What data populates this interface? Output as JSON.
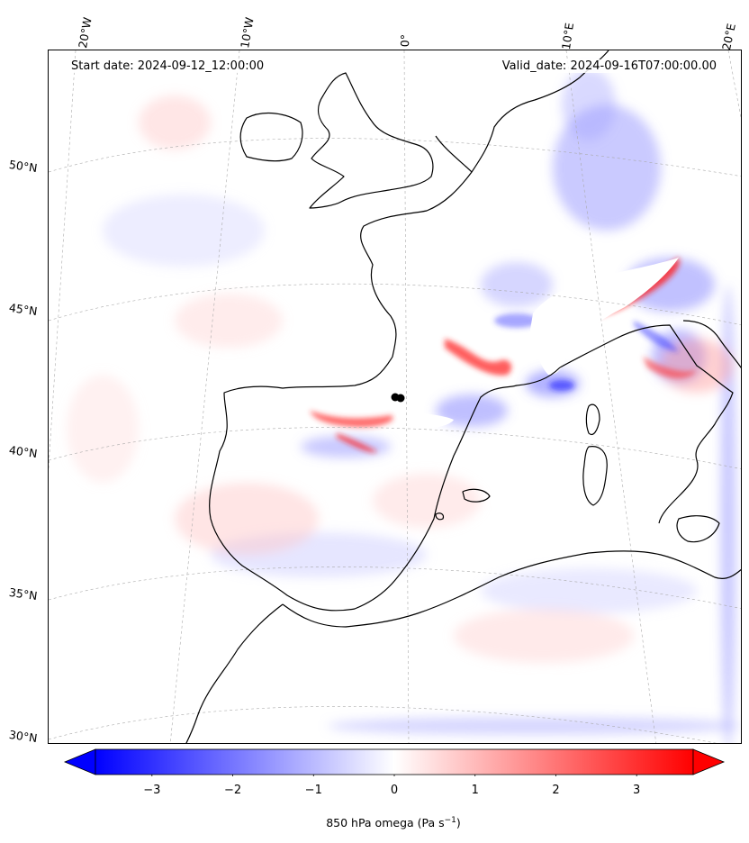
{
  "header": {
    "start_date": "Start date: 2024-09-12_12:00:00",
    "valid_date": "Valid_date: 2024-09-16T07:00:00.00"
  },
  "lon_labels": [
    "20°W",
    "10°W",
    "0°",
    "10°E",
    "20°E"
  ],
  "lat_labels": [
    "50°N",
    "45°N",
    "40°N",
    "35°N",
    "30°N"
  ],
  "colorbar": {
    "label_prefix": "850 hPa omega (Pa s",
    "label_exponent": "−1",
    "label_suffix": ")",
    "ticks": [
      "−3",
      "−2",
      "−1",
      "0",
      "1",
      "2",
      "3"
    ],
    "vmin": -3.7,
    "vmax": 3.7,
    "colors": {
      "negative": "#0000ff",
      "zero": "#ffffff",
      "positive": "#ff0000"
    }
  },
  "map": {
    "projection": "lambert-conformal",
    "coastline_color": "#000000",
    "gridlines": "dashed"
  }
}
